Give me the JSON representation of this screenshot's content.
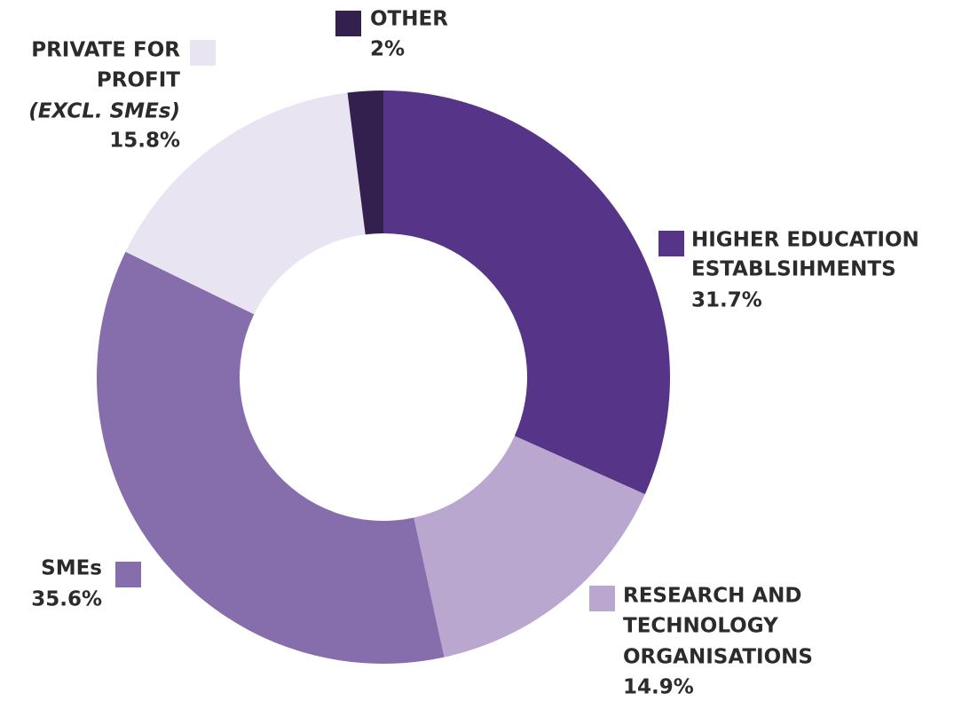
{
  "chart_data": {
    "type": "donut",
    "categories": [
      [
        "HIGHER EDUCATION",
        "ESTABLSIHMENTS"
      ],
      [
        "RESEARCH AND",
        "TECHNOLOGY",
        "ORGANISATIONS"
      ],
      [
        "SMEs"
      ],
      [
        "PRIVATE FOR",
        "PROFIT",
        "(EXCL. SMEs)"
      ],
      [
        "OTHER"
      ]
    ],
    "values": [
      31.7,
      14.9,
      35.6,
      15.8,
      2
    ],
    "value_labels": [
      "31.7%",
      "14.9%",
      "35.6%",
      "15.8%",
      "2%"
    ],
    "colors": [
      "#563589",
      "#b9a7cf",
      "#866dab",
      "#e9e4f1",
      "#33204f"
    ]
  }
}
